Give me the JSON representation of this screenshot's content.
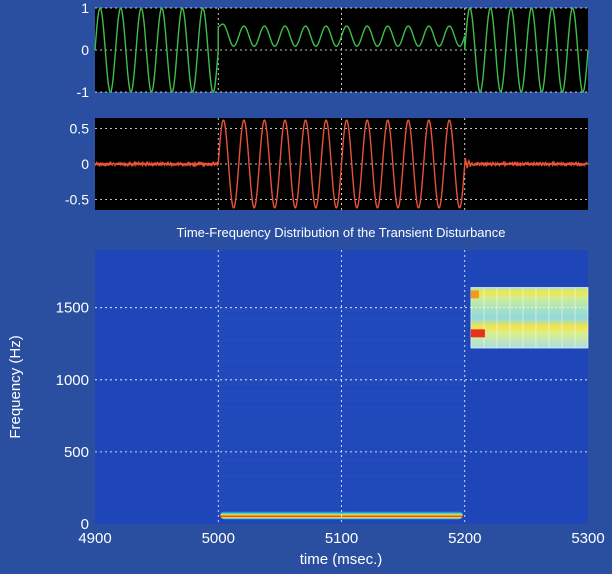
{
  "figure": {
    "background": "#2a4fa0",
    "axis_text_color": "#ffffff",
    "gridline_color": "#ffffff"
  },
  "chart_data": [
    {
      "type": "line",
      "panel": "top",
      "xlim": [
        4900,
        5300
      ],
      "ylim": [
        -1,
        1
      ],
      "yticks": [
        1,
        0,
        -1
      ],
      "grid": true,
      "background": "#000000",
      "series": [
        {
          "color": "#3fbf4a",
          "segments": [
            {
              "t0": 4900,
              "t1": 5000,
              "amplitude": 1.0,
              "cycles": 6,
              "offset": 0
            },
            {
              "t0": 5000,
              "t1": 5200,
              "amplitude": 0.24,
              "cycles": 12,
              "offset": 0.33,
              "decay_from": 0.55
            },
            {
              "t0": 5200,
              "t1": 5300,
              "amplitude": 1.0,
              "cycles": 6,
              "offset": 0
            }
          ]
        }
      ]
    },
    {
      "type": "line",
      "panel": "middle",
      "xlim": [
        4900,
        5300
      ],
      "ylim": [
        -0.65,
        0.65
      ],
      "yticks": [
        0.5,
        0,
        -0.5
      ],
      "grid": true,
      "background": "#000000",
      "series": [
        {
          "color": "#e8533a",
          "segments": [
            {
              "t0": 4900,
              "t1": 5000,
              "amplitude": 0.01,
              "cycles": 0,
              "noise": 0.015
            },
            {
              "t0": 5000,
              "t1": 5200,
              "amplitude": 0.62,
              "cycles": 12,
              "offset": 0
            },
            {
              "t0": 5200,
              "t1": 5300,
              "amplitude": 0.01,
              "cycles": 0,
              "noise": 0.015,
              "ringing": 0.08
            }
          ]
        }
      ]
    },
    {
      "type": "heatmap",
      "panel": "bottom",
      "title": "Time-Frequency Distribution of the Transient Disturbance",
      "xlabel": "time (msec.)",
      "ylabel": "Frequency (Hz)",
      "xlim": [
        4900,
        5300
      ],
      "ylim": [
        0,
        1900
      ],
      "xticks": [
        4900,
        5000,
        5100,
        5200,
        5300
      ],
      "yticks": [
        0,
        500,
        1000,
        1500
      ],
      "grid": true,
      "background": "#1e46b8",
      "band": {
        "t0": 5000,
        "t1": 5200,
        "f_center": 60,
        "f_halfwidth": 30
      },
      "inset": {
        "t0": 5205,
        "t1": 5300,
        "f0": 1220,
        "f1": 1640
      }
    }
  ]
}
